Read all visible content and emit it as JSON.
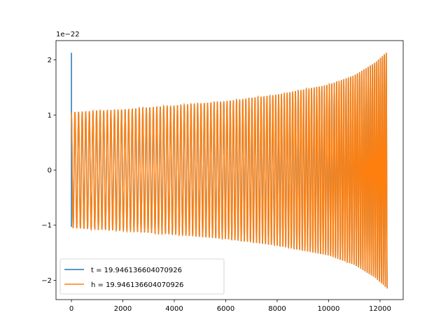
{
  "chart_data": {
    "type": "line",
    "title": "",
    "xlabel": "",
    "ylabel": "",
    "offset_label": "1e−22",
    "xlim": [
      -600,
      12900
    ],
    "ylim": [
      -2.35,
      2.35
    ],
    "xticks": [
      0,
      2000,
      4000,
      6000,
      8000,
      10000,
      12000
    ],
    "xtick_labels": [
      "0",
      "2000",
      "4000",
      "6000",
      "8000",
      "10000",
      "12000"
    ],
    "yticks": [
      -2,
      -1,
      0,
      1,
      2
    ],
    "ytick_labels": [
      "−2",
      "−1",
      "0",
      "1",
      "2"
    ],
    "grid": false,
    "legend_position": "lower-left",
    "series": [
      {
        "name": "t = 19.946136604070926",
        "color": "#1f77b4",
        "description_values": {
          "x_start": 0,
          "spike_max": 2.13,
          "spike_min": -1.03,
          "samples": 12290
        }
      },
      {
        "name": "h = 19.946136604070926",
        "color": "#ff7f0e",
        "description_values": {
          "x_start": 0,
          "x_end": 12280,
          "envelope": [
            [
              0,
              1.05
            ],
            [
              2000,
              1.1
            ],
            [
              4000,
              1.17
            ],
            [
              6000,
              1.25
            ],
            [
              8000,
              1.37
            ],
            [
              10000,
              1.55
            ],
            [
              11000,
              1.72
            ],
            [
              11800,
              1.95
            ],
            [
              12280,
              2.15
            ]
          ]
        }
      }
    ]
  }
}
